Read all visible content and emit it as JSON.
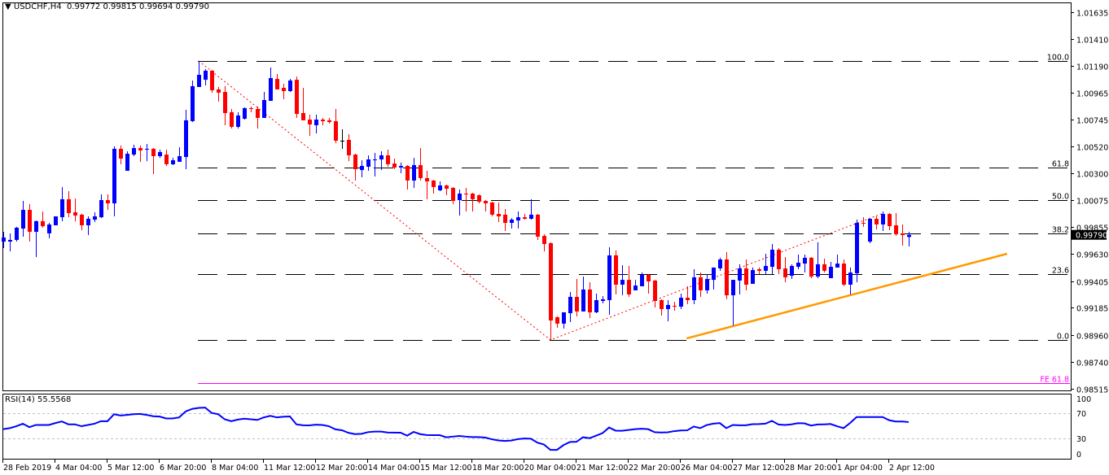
{
  "header": {
    "arrow": "▼",
    "symbol": "USDCHF,H4",
    "open": "0.99772",
    "high": "0.99815",
    "low": "0.99694",
    "close": "0.99790"
  },
  "rsi_label": {
    "name": "RSI(14)",
    "value": "55.5568"
  },
  "colors": {
    "bull": "#0000ff",
    "bear": "#ff0000",
    "doji": "#000000",
    "fib": "#000000",
    "fe": "#ff00ff",
    "zigzag": "#ff0000",
    "trend": "#ff9900",
    "rsi": "#0000ff"
  },
  "chart_data": {
    "type": "candlestick",
    "title": "USDCHF,H4",
    "price_axis_ticks": [
      "1.01635",
      "1.01410",
      "1.01190",
      "1.00965",
      "1.00745",
      "1.00520",
      "1.00300",
      "1.00075",
      "0.99855",
      "0.99630",
      "0.99405",
      "0.99185",
      "0.98960",
      "0.98740",
      "0.98515"
    ],
    "current_price": "0.99790",
    "time_labels": [
      {
        "candle": 1,
        "label": "28 Feb 2019"
      },
      {
        "candle": 9,
        "label": "4 Mar 04:00"
      },
      {
        "candle": 17,
        "label": "5 Mar 12:00"
      },
      {
        "candle": 25,
        "label": "6 Mar 20:00"
      },
      {
        "candle": 33,
        "label": "8 Mar 04:00"
      },
      {
        "candle": 41,
        "label": "11 Mar 12:00"
      },
      {
        "candle": 49,
        "label": "12 Mar 20:00"
      },
      {
        "candle": 57,
        "label": "14 Mar 04:00"
      },
      {
        "candle": 65,
        "label": "15 Mar 12:00"
      },
      {
        "candle": 73,
        "label": "18 Mar 20:00"
      },
      {
        "candle": 81,
        "label": "20 Mar 04:00"
      },
      {
        "candle": 89,
        "label": "21 Mar 12:00"
      },
      {
        "candle": 97,
        "label": "22 Mar 20:00"
      },
      {
        "candle": 105,
        "label": "26 Mar 04:00"
      },
      {
        "candle": 113,
        "label": "27 Mar 12:00"
      },
      {
        "candle": 121,
        "label": "28 Mar 20:00"
      },
      {
        "candle": 129,
        "label": "1 Apr 04:00"
      },
      {
        "candle": 137,
        "label": "2 Apr 12:00"
      }
    ],
    "ohlc": [
      [
        0.99734,
        0.99815,
        0.9968,
        0.99768
      ],
      [
        0.99734,
        0.99802,
        0.99653,
        0.99748
      ],
      [
        0.99748,
        0.99856,
        0.99734,
        0.99849
      ],
      [
        0.99842,
        1.00071,
        0.99775,
        0.99997
      ],
      [
        0.99997,
        1.00044,
        0.99734,
        0.99815
      ],
      [
        0.99815,
        0.99909,
        0.99606,
        0.99903
      ],
      [
        0.99903,
        0.99984,
        0.99849,
        0.99862
      ],
      [
        0.99802,
        0.99889,
        0.99761,
        0.99876
      ],
      [
        0.99869,
        0.99943,
        0.99869,
        0.99943
      ],
      [
        0.99936,
        1.00186,
        0.99903,
        1.00085
      ],
      [
        1.00085,
        1.00152,
        0.99936,
        0.9997
      ],
      [
        0.99977,
        1.00091,
        0.99903,
        0.9995
      ],
      [
        0.99957,
        0.99965,
        0.99829,
        0.99869
      ],
      [
        0.99869,
        0.99943,
        0.99788,
        0.99923
      ],
      [
        0.99916,
        0.99977,
        0.99896,
        0.99943
      ],
      [
        0.99936,
        1.00125,
        0.99929,
        1.00078
      ],
      [
        1.00078,
        1.00125,
        0.99997,
        1.00051
      ],
      [
        1.00051,
        1.00523,
        0.99943,
        1.00503
      ],
      [
        1.00503,
        1.0053,
        1.00375,
        1.00422
      ],
      [
        1.00321,
        1.00482,
        1.00321,
        1.00462
      ],
      [
        1.00455,
        1.00536,
        1.00442,
        1.00509
      ],
      [
        1.00509,
        1.0053,
        1.00395,
        1.00489
      ],
      [
        1.00496,
        1.00543,
        1.00401,
        1.00503
      ],
      [
        1.00503,
        1.00509,
        1.00294,
        1.00442
      ],
      [
        1.00442,
        1.00496,
        1.00428,
        1.00476
      ],
      [
        1.00455,
        1.00496,
        1.00361,
        1.00375
      ],
      [
        1.00375,
        1.00428,
        1.00368,
        1.00408
      ],
      [
        1.00395,
        1.00516,
        1.00395,
        1.00442
      ],
      [
        1.00435,
        1.00826,
        1.00334,
        1.00739
      ],
      [
        1.00732,
        1.01069,
        1.00725,
        1.01022
      ],
      [
        1.01015,
        1.01231,
        1.01015,
        1.01116
      ],
      [
        1.01075,
        1.01163,
        1.01028,
        1.0115
      ],
      [
        1.0115,
        1.01156,
        1.00968,
        1.00988
      ],
      [
        1.00995,
        1.01015,
        1.00894,
        1.00968
      ],
      [
        1.00974,
        1.01022,
        1.00698,
        1.00799
      ],
      [
        1.00806,
        1.00833,
        1.00671,
        1.00685
      ],
      [
        1.00685,
        1.00806,
        1.00671,
        1.00779
      ],
      [
        1.00752,
        1.00846,
        1.00745,
        1.0084
      ],
      [
        1.0084,
        1.00853,
        1.00806,
        1.00833
      ],
      [
        1.00833,
        1.00853,
        1.00671,
        1.00759
      ],
      [
        1.00759,
        1.00974,
        1.00759,
        1.00907
      ],
      [
        1.009,
        1.01177,
        1.009,
        1.01089
      ],
      [
        1.01082,
        1.01123,
        1.00995,
        1.00995
      ],
      [
        1.01008,
        1.01042,
        1.00914,
        1.00981
      ],
      [
        1.00981,
        1.01082,
        1.00974,
        1.01069
      ],
      [
        1.01075,
        1.01102,
        1.00759,
        1.00792
      ],
      [
        1.00799,
        1.01008,
        1.00739,
        1.00739
      ],
      [
        1.00745,
        1.00786,
        1.0061,
        1.00705
      ],
      [
        1.00698,
        1.00786,
        1.00631,
        1.00745
      ],
      [
        1.00745,
        1.00759,
        1.00698,
        1.00732
      ],
      [
        1.00739,
        1.00759,
        1.00712,
        1.00725
      ],
      [
        1.00732,
        1.00833,
        1.0055,
        1.0057
      ],
      [
        1.0057,
        1.00664,
        1.00503,
        1.0057
      ],
      [
        1.00577,
        1.00624,
        1.00401,
        1.00449
      ],
      [
        1.00455,
        1.00462,
        1.0024,
        1.00334
      ],
      [
        1.00327,
        1.00408,
        1.00267,
        1.00361
      ],
      [
        1.00354,
        1.00449,
        1.00321,
        1.00415
      ],
      [
        1.00408,
        1.00469,
        1.00273,
        1.00415
      ],
      [
        1.00415,
        1.00482,
        1.00327,
        1.00449
      ],
      [
        1.00449,
        1.00496,
        1.00354,
        1.00375
      ],
      [
        1.00381,
        1.00422,
        1.00334,
        1.00348
      ],
      [
        1.00348,
        1.00388,
        1.003,
        1.00361
      ],
      [
        1.00361,
        1.00368,
        1.00166,
        1.0024
      ],
      [
        1.0024,
        1.00428,
        1.00179,
        1.00368
      ],
      [
        1.00368,
        1.00509,
        1.0024,
        1.0026
      ],
      [
        1.0026,
        1.00321,
        1.00085,
        1.00233
      ],
      [
        1.0024,
        1.00246,
        1.00132,
        1.00186
      ],
      [
        1.00159,
        1.00233,
        1.00152,
        1.00199
      ],
      [
        1.00199,
        1.00206,
        1.00118,
        1.00172
      ],
      [
        1.00179,
        1.00186,
        1.00044,
        1.00071
      ],
      [
        1.00078,
        1.00166,
        0.9995,
        1.00132
      ],
      [
        1.00132,
        1.00179,
        0.99984,
        1.00125
      ],
      [
        1.00132,
        1.00139,
        0.99984,
        1.00085
      ],
      [
        1.00118,
        1.00125,
        1.00051,
        1.00064
      ],
      [
        1.00071,
        1.00078,
        0.99984,
        1.00051
      ],
      [
        1.00058,
        1.00064,
        0.99943,
        0.99957
      ],
      [
        0.99963,
        1.00058,
        0.99896,
        0.99943
      ],
      [
        0.99957,
        1.00004,
        0.99822,
        0.99889
      ],
      [
        0.99889,
        0.99929,
        0.99842,
        0.99916
      ],
      [
        0.99909,
        0.99984,
        0.99842,
        0.99936
      ],
      [
        0.99936,
        0.99963,
        0.99916,
        0.99923
      ],
      [
        0.99923,
        1.00085,
        0.99916,
        0.99957
      ],
      [
        0.99957,
        0.99963,
        0.99748,
        0.99775
      ],
      [
        0.99781,
        0.99795,
        0.99653,
        0.99714
      ],
      [
        0.99721,
        0.99728,
        0.98919,
        0.9908
      ],
      [
        0.99107,
        0.99114,
        0.9902,
        0.99054
      ],
      [
        0.99054,
        0.99148,
        0.99013,
        0.99148
      ],
      [
        0.99141,
        0.99316,
        0.99067,
        0.99276
      ],
      [
        0.99276,
        0.99424,
        0.99114,
        0.99155
      ],
      [
        0.99155,
        0.99444,
        0.99155,
        0.99337
      ],
      [
        0.99337,
        0.99397,
        0.99101,
        0.99148
      ],
      [
        0.99148,
        0.99303,
        0.99141,
        0.99249
      ],
      [
        0.99242,
        0.99283,
        0.99222,
        0.99256
      ],
      [
        0.99249,
        0.99687,
        0.99128,
        0.9962
      ],
      [
        0.9962,
        0.9966,
        0.99296,
        0.99377
      ],
      [
        0.99377,
        0.99539,
        0.99289,
        0.99417
      ],
      [
        0.99417,
        0.99532,
        0.99276,
        0.99296
      ],
      [
        0.9933,
        0.99417,
        0.9933,
        0.9937
      ],
      [
        0.99364,
        0.99478,
        0.99364,
        0.99458
      ],
      [
        0.99458,
        0.99465,
        0.99303,
        0.99404
      ],
      [
        0.99411,
        0.99417,
        0.99188,
        0.99242
      ],
      [
        0.99249,
        0.99256,
        0.99121,
        0.99175
      ],
      [
        0.99175,
        0.99249,
        0.99074,
        0.99209
      ],
      [
        0.99202,
        0.99235,
        0.99161,
        0.99195
      ],
      [
        0.99195,
        0.99303,
        0.99175,
        0.99269
      ],
      [
        0.99269,
        0.99364,
        0.99215,
        0.99249
      ],
      [
        0.99249,
        0.99505,
        0.99215,
        0.99438
      ],
      [
        0.99438,
        0.99478,
        0.99276,
        0.9933
      ],
      [
        0.9933,
        0.99465,
        0.99303,
        0.99424
      ],
      [
        0.99417,
        0.99519,
        0.99337,
        0.99519
      ],
      [
        0.99512,
        0.996,
        0.99492,
        0.99586
      ],
      [
        0.99586,
        0.99647,
        0.99256,
        0.99289
      ],
      [
        0.99289,
        0.99417,
        0.9904,
        0.99417
      ],
      [
        0.99411,
        0.99546,
        0.99296,
        0.99512
      ],
      [
        0.99512,
        0.99586,
        0.9933,
        0.99377
      ],
      [
        0.99384,
        0.99519,
        0.99384,
        0.99498
      ],
      [
        0.99505,
        0.99519,
        0.99465,
        0.99492
      ],
      [
        0.99492,
        0.99633,
        0.99465,
        0.99532
      ],
      [
        0.99525,
        0.99714,
        0.99465,
        0.99667
      ],
      [
        0.99667,
        0.9968,
        0.99465,
        0.99505
      ],
      [
        0.99512,
        0.99606,
        0.99397,
        0.99438
      ],
      [
        0.99451,
        0.99546,
        0.99424,
        0.99532
      ],
      [
        0.99525,
        0.99626,
        0.99505,
        0.99559
      ],
      [
        0.99552,
        0.99626,
        0.99478,
        0.996
      ],
      [
        0.996,
        0.99606,
        0.99431,
        0.99444
      ],
      [
        0.99444,
        0.99728,
        0.99431,
        0.99546
      ],
      [
        0.99546,
        0.99593,
        0.99478,
        0.99492
      ],
      [
        0.99431,
        0.99566,
        0.99431,
        0.99525
      ],
      [
        0.99519,
        0.99626,
        0.99519,
        0.99552
      ],
      [
        0.99552,
        0.99586,
        0.99364,
        0.99377
      ],
      [
        0.99377,
        0.99519,
        0.99296,
        0.99478
      ],
      [
        0.99471,
        0.99916,
        0.99397,
        0.99889
      ],
      [
        0.99889,
        0.99936,
        0.99856,
        0.99882
      ],
      [
        0.99734,
        0.99923,
        0.99721,
        0.99923
      ],
      [
        0.99923,
        0.99943,
        0.99835,
        0.99876
      ],
      [
        0.99876,
        0.99984,
        0.99822,
        0.99963
      ],
      [
        0.99963,
        0.9997,
        0.99829,
        0.99862
      ],
      [
        0.99869,
        0.9997,
        0.99781,
        0.99795
      ],
      [
        0.99802,
        0.99876,
        0.99701,
        0.99788
      ],
      [
        0.99772,
        0.99815,
        0.99694,
        0.9979
      ]
    ],
    "fibonacci": {
      "high": 1.01231,
      "low": 0.98919,
      "start_candle": 31,
      "end_candle": 165,
      "levels": [
        {
          "ratio": 1.0,
          "label": "100.0"
        },
        {
          "ratio": 0.618,
          "label": "61.8"
        },
        {
          "ratio": 0.5,
          "label": "50.0"
        },
        {
          "ratio": 0.382,
          "label": "38.2"
        },
        {
          "ratio": 0.236,
          "label": "23.6"
        },
        {
          "ratio": 0.0,
          "label": "0.0"
        }
      ],
      "expansion": {
        "price": 0.98561,
        "label": "FE 61.8"
      }
    },
    "zigzag": [
      {
        "candle": 31,
        "price": 1.01231
      },
      {
        "candle": 85,
        "price": 0.98919
      },
      {
        "candle": 136.1,
        "price": 0.9997
      }
    ],
    "trendline": [
      {
        "candle": 105.9,
        "price": 0.98932
      },
      {
        "candle": 155.1,
        "price": 0.99633
      }
    ],
    "rsi": {
      "period": 14,
      "levels": [
        70,
        30
      ],
      "axis_labels": [
        "100",
        "70",
        "30",
        "0"
      ],
      "ylim": [
        0,
        100
      ],
      "values": [
        44.3,
        46,
        49,
        53,
        47.5,
        51,
        51,
        51,
        54,
        56.5,
        52,
        52,
        49,
        51,
        53,
        57,
        57,
        68,
        66,
        67,
        68,
        68.5,
        67,
        64.8,
        64.3,
        61.3,
        61.3,
        63,
        72.5,
        76.5,
        78,
        78.5,
        70,
        68,
        60,
        57,
        59.5,
        61,
        60,
        59,
        63,
        65.5,
        63,
        64,
        64.5,
        52,
        50.5,
        50.4,
        51.5,
        51,
        49,
        44,
        42.6,
        38.5,
        36.5,
        37,
        39.6,
        40.5,
        40.5,
        39,
        38.8,
        38.7,
        34,
        40,
        36.5,
        35,
        34.8,
        34.8,
        31.5,
        32.5,
        33.5,
        32.5,
        31.7,
        31.7,
        31,
        28.3,
        26.5,
        25.7,
        26.3,
        28.5,
        29.5,
        29.2,
        23,
        20,
        11.5,
        11.5,
        19,
        24,
        24.3,
        31.5,
        30,
        34,
        38,
        47,
        42,
        41.8,
        43,
        44.4,
        45,
        44.3,
        39.5,
        39.1,
        39.3,
        41.2,
        42.2,
        42.5,
        48.5,
        46,
        50.9,
        53,
        54,
        46,
        51,
        50.5,
        50.5,
        52.2,
        52.4,
        53,
        57.5,
        51.7,
        51,
        52,
        53.8,
        53.5,
        50,
        51.7,
        52,
        52.5,
        49,
        46,
        54,
        63.5,
        63.5,
        63.5,
        63.5,
        63.5,
        58.5,
        56.5,
        56.5,
        55.56
      ]
    }
  }
}
